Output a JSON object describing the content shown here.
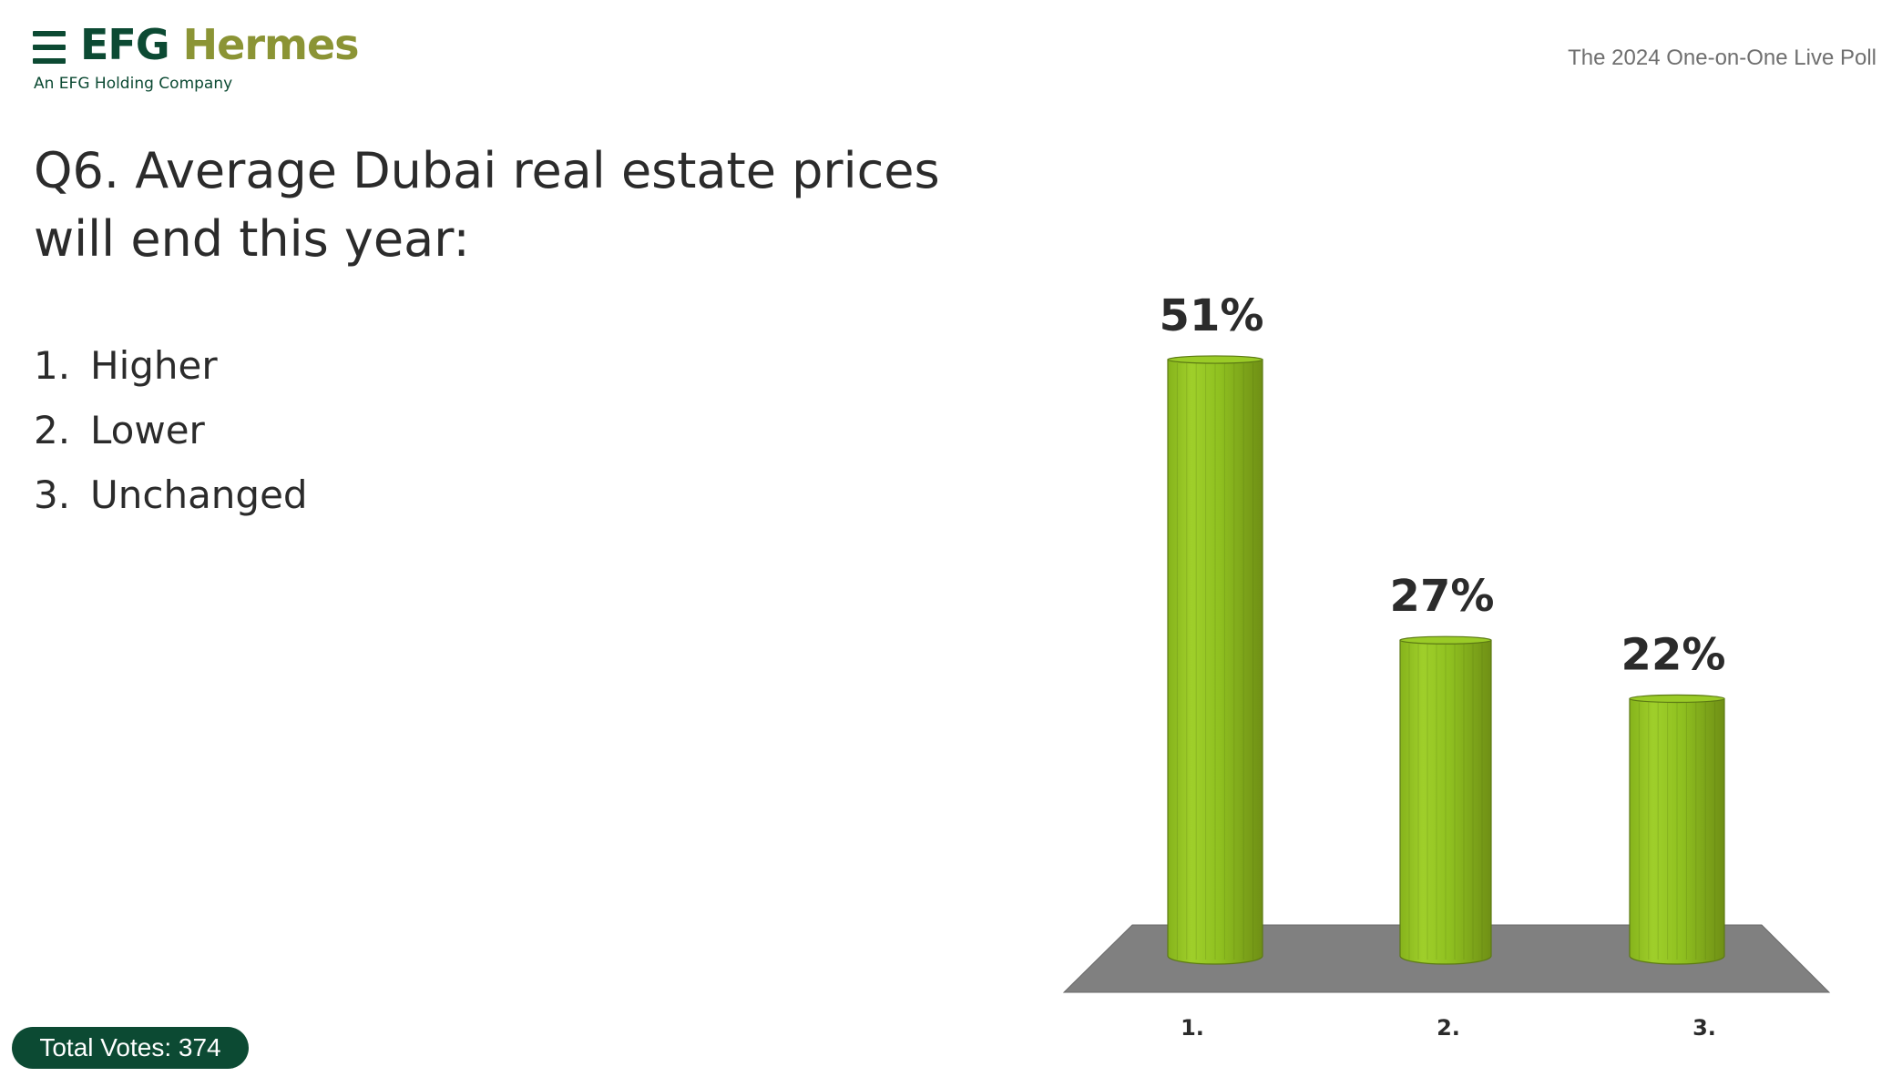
{
  "header": {
    "logo_primary": "EFG",
    "logo_secondary": "Hermes",
    "logo_tagline": "An EFG Holding Company",
    "poll_name": "The 2024 One-on-One Live Poll"
  },
  "question": {
    "text": "Q6. Average Dubai real estate prices will end this year:"
  },
  "options": [
    {
      "number": "1.",
      "label": "Higher"
    },
    {
      "number": "2.",
      "label": "Lower"
    },
    {
      "number": "3.",
      "label": "Unchanged"
    }
  ],
  "footer": {
    "total_votes": "Total Votes: 374"
  },
  "colors": {
    "brand_green": "#0c4a33",
    "brand_olive": "#8b9435",
    "bar_green": "#8fc31f",
    "floor_gray": "#808080"
  },
  "chart_data": {
    "type": "bar",
    "style": "3d-cylinder",
    "categories": [
      "1.",
      "2.",
      "3."
    ],
    "values": [
      51,
      27,
      22
    ],
    "data_labels": [
      "51%",
      "27%",
      "22%"
    ],
    "unit": "%",
    "ylim": [
      0,
      51
    ],
    "grid": false,
    "legend": "none"
  }
}
